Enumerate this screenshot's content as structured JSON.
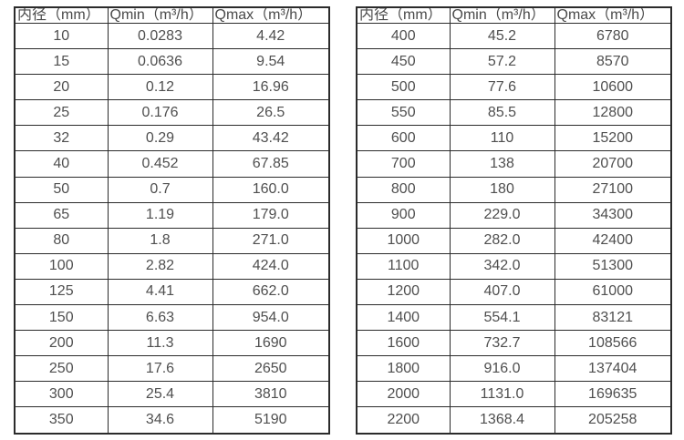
{
  "colors": {
    "background": "#ffffff",
    "border": "#2b2b2b",
    "text": "#4d4d4d"
  },
  "tables": [
    {
      "name": "flow-range-table-small-diameters",
      "headers": [
        "内径（mm）",
        "Qmin（m³/h）",
        "Qmax（m³/h）"
      ],
      "rows": [
        [
          "10",
          "0.0283",
          "4.42"
        ],
        [
          "15",
          "0.0636",
          "9.54"
        ],
        [
          "20",
          "0.12",
          "16.96"
        ],
        [
          "25",
          "0.176",
          "26.5"
        ],
        [
          "32",
          "0.29",
          "43.42"
        ],
        [
          "40",
          "0.452",
          "67.85"
        ],
        [
          "50",
          "0.7",
          "160.0"
        ],
        [
          "65",
          "1.19",
          "179.0"
        ],
        [
          "80",
          "1.8",
          "271.0"
        ],
        [
          "100",
          "2.82",
          "424.0"
        ],
        [
          "125",
          "4.41",
          "662.0"
        ],
        [
          "150",
          "6.63",
          "954.0"
        ],
        [
          "200",
          "11.3",
          "1690"
        ],
        [
          "250",
          "17.6",
          "2650"
        ],
        [
          "300",
          "25.4",
          "3810"
        ],
        [
          "350",
          "34.6",
          "5190"
        ]
      ]
    },
    {
      "name": "flow-range-table-large-diameters",
      "headers": [
        "内径（mm）",
        "Qmin（m³/h）",
        "Qmax（m³/h）"
      ],
      "rows": [
        [
          "400",
          "45.2",
          "6780"
        ],
        [
          "450",
          "57.2",
          "8570"
        ],
        [
          "500",
          "77.6",
          "10600"
        ],
        [
          "550",
          "85.5",
          "12800"
        ],
        [
          "600",
          "110",
          "15200"
        ],
        [
          "700",
          "138",
          "20700"
        ],
        [
          "800",
          "180",
          "27100"
        ],
        [
          "900",
          "229.0",
          "34300"
        ],
        [
          "1000",
          "282.0",
          "42400"
        ],
        [
          "1100",
          "342.0",
          "51300"
        ],
        [
          "1200",
          "407.0",
          "61000"
        ],
        [
          "1400",
          "554.1",
          "83121"
        ],
        [
          "1600",
          "732.7",
          "108566"
        ],
        [
          "1800",
          "916.0",
          "137404"
        ],
        [
          "2000",
          "1131.0",
          "169635"
        ],
        [
          "2200",
          "1368.4",
          "205258"
        ]
      ]
    }
  ]
}
